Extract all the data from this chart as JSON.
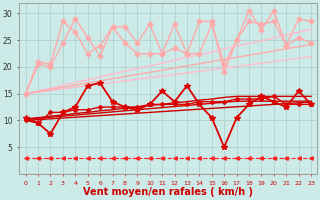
{
  "background_color": "#cceae7",
  "grid_color": "#aacccc",
  "xlabel": "Vent moyen/en rafales ( km/h )",
  "xlabel_color": "#cc0000",
  "xlabel_fontsize": 7,
  "ylim": [
    0,
    32
  ],
  "yticks": [
    5,
    10,
    15,
    20,
    25,
    30
  ],
  "series": [
    {
      "color": "#ffaaaa",
      "lw": 1.0,
      "marker": "D",
      "ms": 2.5,
      "ls": "-",
      "y": [
        15.0,
        21.0,
        20.5,
        28.5,
        26.5,
        22.5,
        24.0,
        27.5,
        27.5,
        24.5,
        28.0,
        22.5,
        28.0,
        22.5,
        28.5,
        28.5,
        19.0,
        25.0,
        30.5,
        27.0,
        30.5,
        24.0,
        29.0,
        28.5
      ]
    },
    {
      "color": "#ffaaaa",
      "lw": 1.0,
      "marker": "D",
      "ms": 2.5,
      "ls": "-",
      "y": [
        15.0,
        20.5,
        20.0,
        24.5,
        29.0,
        25.5,
        22.0,
        27.5,
        24.5,
        22.5,
        22.5,
        22.5,
        23.5,
        22.5,
        22.5,
        28.0,
        20.5,
        25.0,
        28.5,
        28.0,
        28.5,
        24.0,
        25.5,
        24.5
      ]
    },
    {
      "color": "#ffbbcc",
      "lw": 1.0,
      "marker": null,
      "ms": 0,
      "ls": "-",
      "y": [
        15.0,
        15.5,
        16.0,
        16.6,
        17.1,
        17.6,
        18.1,
        18.7,
        19.2,
        19.7,
        20.2,
        20.7,
        21.3,
        21.8,
        22.3,
        22.8,
        23.4,
        23.9,
        24.4,
        24.9,
        25.4,
        26.0,
        26.5,
        27.0
      ]
    },
    {
      "color": "#ffbbcc",
      "lw": 1.0,
      "marker": null,
      "ms": 0,
      "ls": "-",
      "y": [
        15.0,
        15.3,
        15.6,
        15.9,
        16.2,
        16.5,
        16.8,
        17.1,
        17.4,
        17.7,
        18.0,
        18.3,
        18.6,
        18.9,
        19.2,
        19.5,
        19.8,
        20.1,
        20.4,
        20.7,
        21.0,
        21.3,
        21.6,
        21.9
      ]
    },
    {
      "color": "#ffaaaa",
      "lw": 1.0,
      "marker": null,
      "ms": 0,
      "ls": "-",
      "y": [
        15.0,
        15.4,
        15.8,
        16.2,
        16.6,
        17.0,
        17.4,
        17.8,
        18.2,
        18.6,
        19.0,
        19.4,
        19.8,
        20.2,
        20.6,
        21.0,
        21.4,
        21.8,
        22.2,
        22.6,
        23.0,
        23.4,
        23.8,
        24.2
      ]
    },
    {
      "color": "#dd0000",
      "lw": 1.3,
      "marker": "*",
      "ms": 4,
      "ls": "-",
      "y": [
        10.5,
        9.5,
        7.5,
        11.5,
        12.5,
        16.5,
        17.0,
        13.5,
        12.5,
        12.0,
        13.0,
        15.5,
        13.5,
        16.5,
        13.0,
        10.5,
        5.0,
        10.5,
        13.0,
        14.5,
        13.5,
        12.5,
        15.5,
        13.0
      ]
    },
    {
      "color": "#cc0000",
      "lw": 1.0,
      "marker": null,
      "ms": 0,
      "ls": "-",
      "y": [
        10.3,
        10.5,
        10.8,
        11.0,
        11.3,
        11.5,
        11.8,
        12.0,
        12.3,
        12.5,
        12.8,
        13.0,
        13.3,
        13.5,
        13.8,
        14.0,
        14.3,
        14.5,
        14.5,
        14.5,
        14.5,
        14.5,
        14.5,
        14.5
      ]
    },
    {
      "color": "#cc0000",
      "lw": 1.0,
      "marker": null,
      "ms": 0,
      "ls": "-",
      "y": [
        10.2,
        10.4,
        10.6,
        10.8,
        11.0,
        11.2,
        11.4,
        11.6,
        11.8,
        12.0,
        12.2,
        12.4,
        12.6,
        12.8,
        13.0,
        13.2,
        13.4,
        13.6,
        13.6,
        13.6,
        13.6,
        13.6,
        13.6,
        13.6
      ]
    },
    {
      "color": "#cc0000",
      "lw": 1.0,
      "marker": null,
      "ms": 0,
      "ls": "-",
      "y": [
        10.0,
        10.15,
        10.3,
        10.45,
        10.6,
        10.75,
        10.9,
        11.05,
        11.2,
        11.35,
        11.5,
        11.65,
        11.8,
        11.95,
        12.1,
        12.25,
        12.4,
        12.55,
        12.7,
        12.85,
        13.0,
        13.15,
        13.3,
        13.45
      ]
    },
    {
      "color": "#dd0000",
      "lw": 1.0,
      "marker": "D",
      "ms": 2.0,
      "ls": "-",
      "y": [
        10.0,
        9.5,
        11.5,
        11.5,
        12.0,
        12.0,
        12.5,
        12.5,
        12.5,
        12.5,
        13.0,
        13.0,
        13.0,
        13.0,
        13.5,
        13.5,
        13.5,
        14.0,
        14.0,
        14.0,
        14.5,
        13.0,
        13.0,
        13.0
      ]
    },
    {
      "color": "#ff2222",
      "lw": 0.8,
      "marker": "<",
      "ms": 2.5,
      "ls": "--",
      "y": [
        3.0,
        3.0,
        3.0,
        3.0,
        3.0,
        3.0,
        3.0,
        3.0,
        3.0,
        3.0,
        3.0,
        3.0,
        3.0,
        3.0,
        3.0,
        3.0,
        3.0,
        3.0,
        3.0,
        3.0,
        3.0,
        3.0,
        3.0,
        3.0
      ]
    }
  ]
}
